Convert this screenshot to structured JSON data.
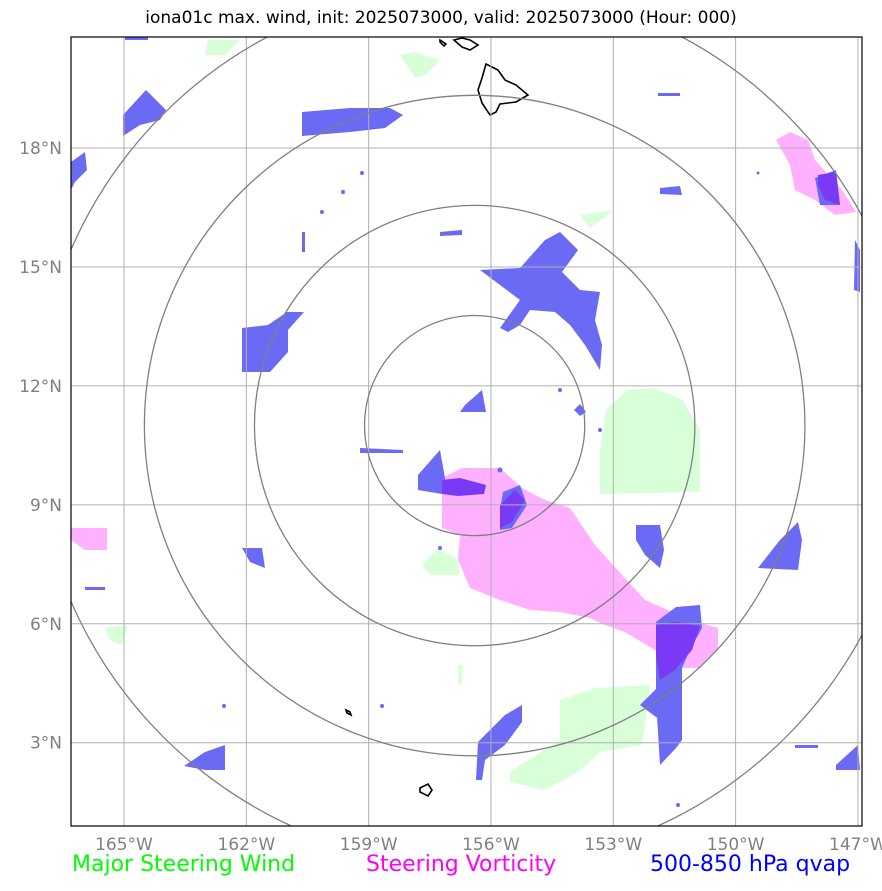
{
  "title": "iona01c max. wind, init: 2025073000, valid: 2025073000 (Hour: 000)",
  "legend": [
    {
      "label": "Major Steering Wind",
      "color": "#00ff00"
    },
    {
      "label": "Steering Vorticity",
      "color": "#ff00ff"
    },
    {
      "label": "500-850 hPa qvap",
      "color": "#0000ff"
    }
  ],
  "chart_data": {
    "type": "heatmap",
    "xlim": [
      -166.3,
      -146.9
    ],
    "ylim": [
      0.9,
      20.8
    ],
    "x_ticks": [
      -165,
      -162,
      -159,
      -156,
      -153,
      -150,
      -147
    ],
    "x_tick_labels": [
      "165°W",
      "162°W",
      "159°W",
      "156°W",
      "153°W",
      "150°W",
      "147°W"
    ],
    "y_ticks": [
      3,
      6,
      9,
      12,
      15,
      18
    ],
    "y_tick_labels": [
      "3°N",
      "6°N",
      "9°N",
      "12°N",
      "15°N",
      "18°N"
    ],
    "grid": true,
    "storm_center": {
      "lon": -156.4,
      "lat": 11.0
    },
    "range_ring_radii_deg": [
      2.7,
      5.4,
      8.1,
      10.8
    ],
    "colors": {
      "qvap": "#6a6af5",
      "vorticity": "#ffb0ff",
      "overlap": "#7a3af5",
      "wind": "#d8ffd8",
      "coast": "#000000",
      "grid": "#b0b0b0",
      "rings": "#808080",
      "tick_label": "#808080"
    }
  }
}
